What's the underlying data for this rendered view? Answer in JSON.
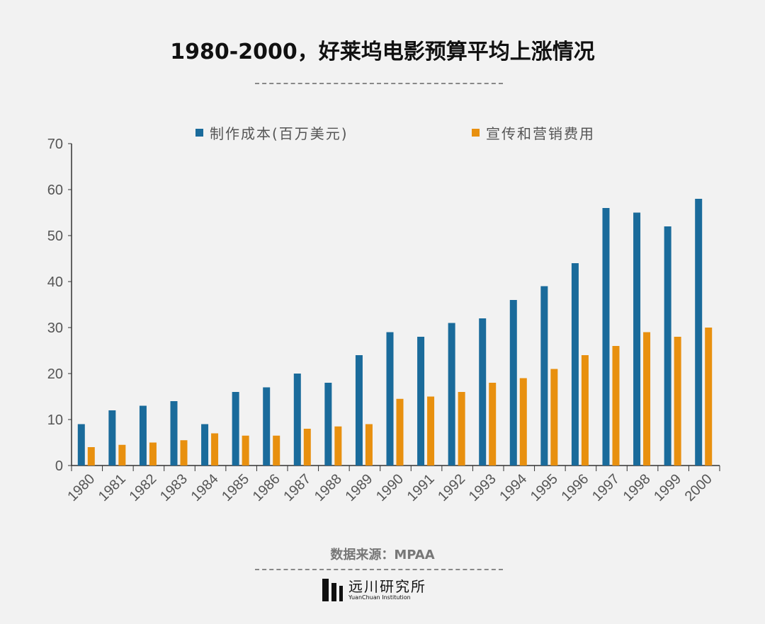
{
  "chart_data": {
    "type": "bar",
    "title": "1980-2000，好莱坞电影预算平均上涨情况",
    "categories": [
      "1980",
      "1981",
      "1982",
      "1983",
      "1984",
      "1985",
      "1986",
      "1987",
      "1988",
      "1989",
      "1990",
      "1991",
      "1992",
      "1993",
      "1994",
      "1995",
      "1996",
      "1997",
      "1998",
      "1999",
      "2000"
    ],
    "series": [
      {
        "name": "制作成本(百万美元)",
        "color": "#1a6b9b",
        "values": [
          9,
          12,
          13,
          14,
          9,
          16,
          17,
          20,
          18,
          24,
          29,
          28,
          31,
          32,
          36,
          39,
          44,
          56,
          55,
          52,
          58
        ]
      },
      {
        "name": "宣传和营销费用",
        "color": "#e8900f",
        "values": [
          4,
          4.5,
          5,
          5.5,
          7,
          6.5,
          6.5,
          8,
          8.5,
          9,
          14.5,
          15,
          16,
          18,
          19,
          21,
          24,
          26,
          29,
          28,
          30
        ]
      }
    ],
    "ylim": [
      0,
      70
    ],
    "yticks": [
      0,
      10,
      20,
      30,
      40,
      50,
      60,
      70
    ],
    "xlabel": "",
    "ylabel": "",
    "grid": false,
    "legend": "top"
  },
  "source": "数据来源：MPAA",
  "logo": {
    "cn": "远川研究所",
    "en": "YuanChuan Institution"
  }
}
